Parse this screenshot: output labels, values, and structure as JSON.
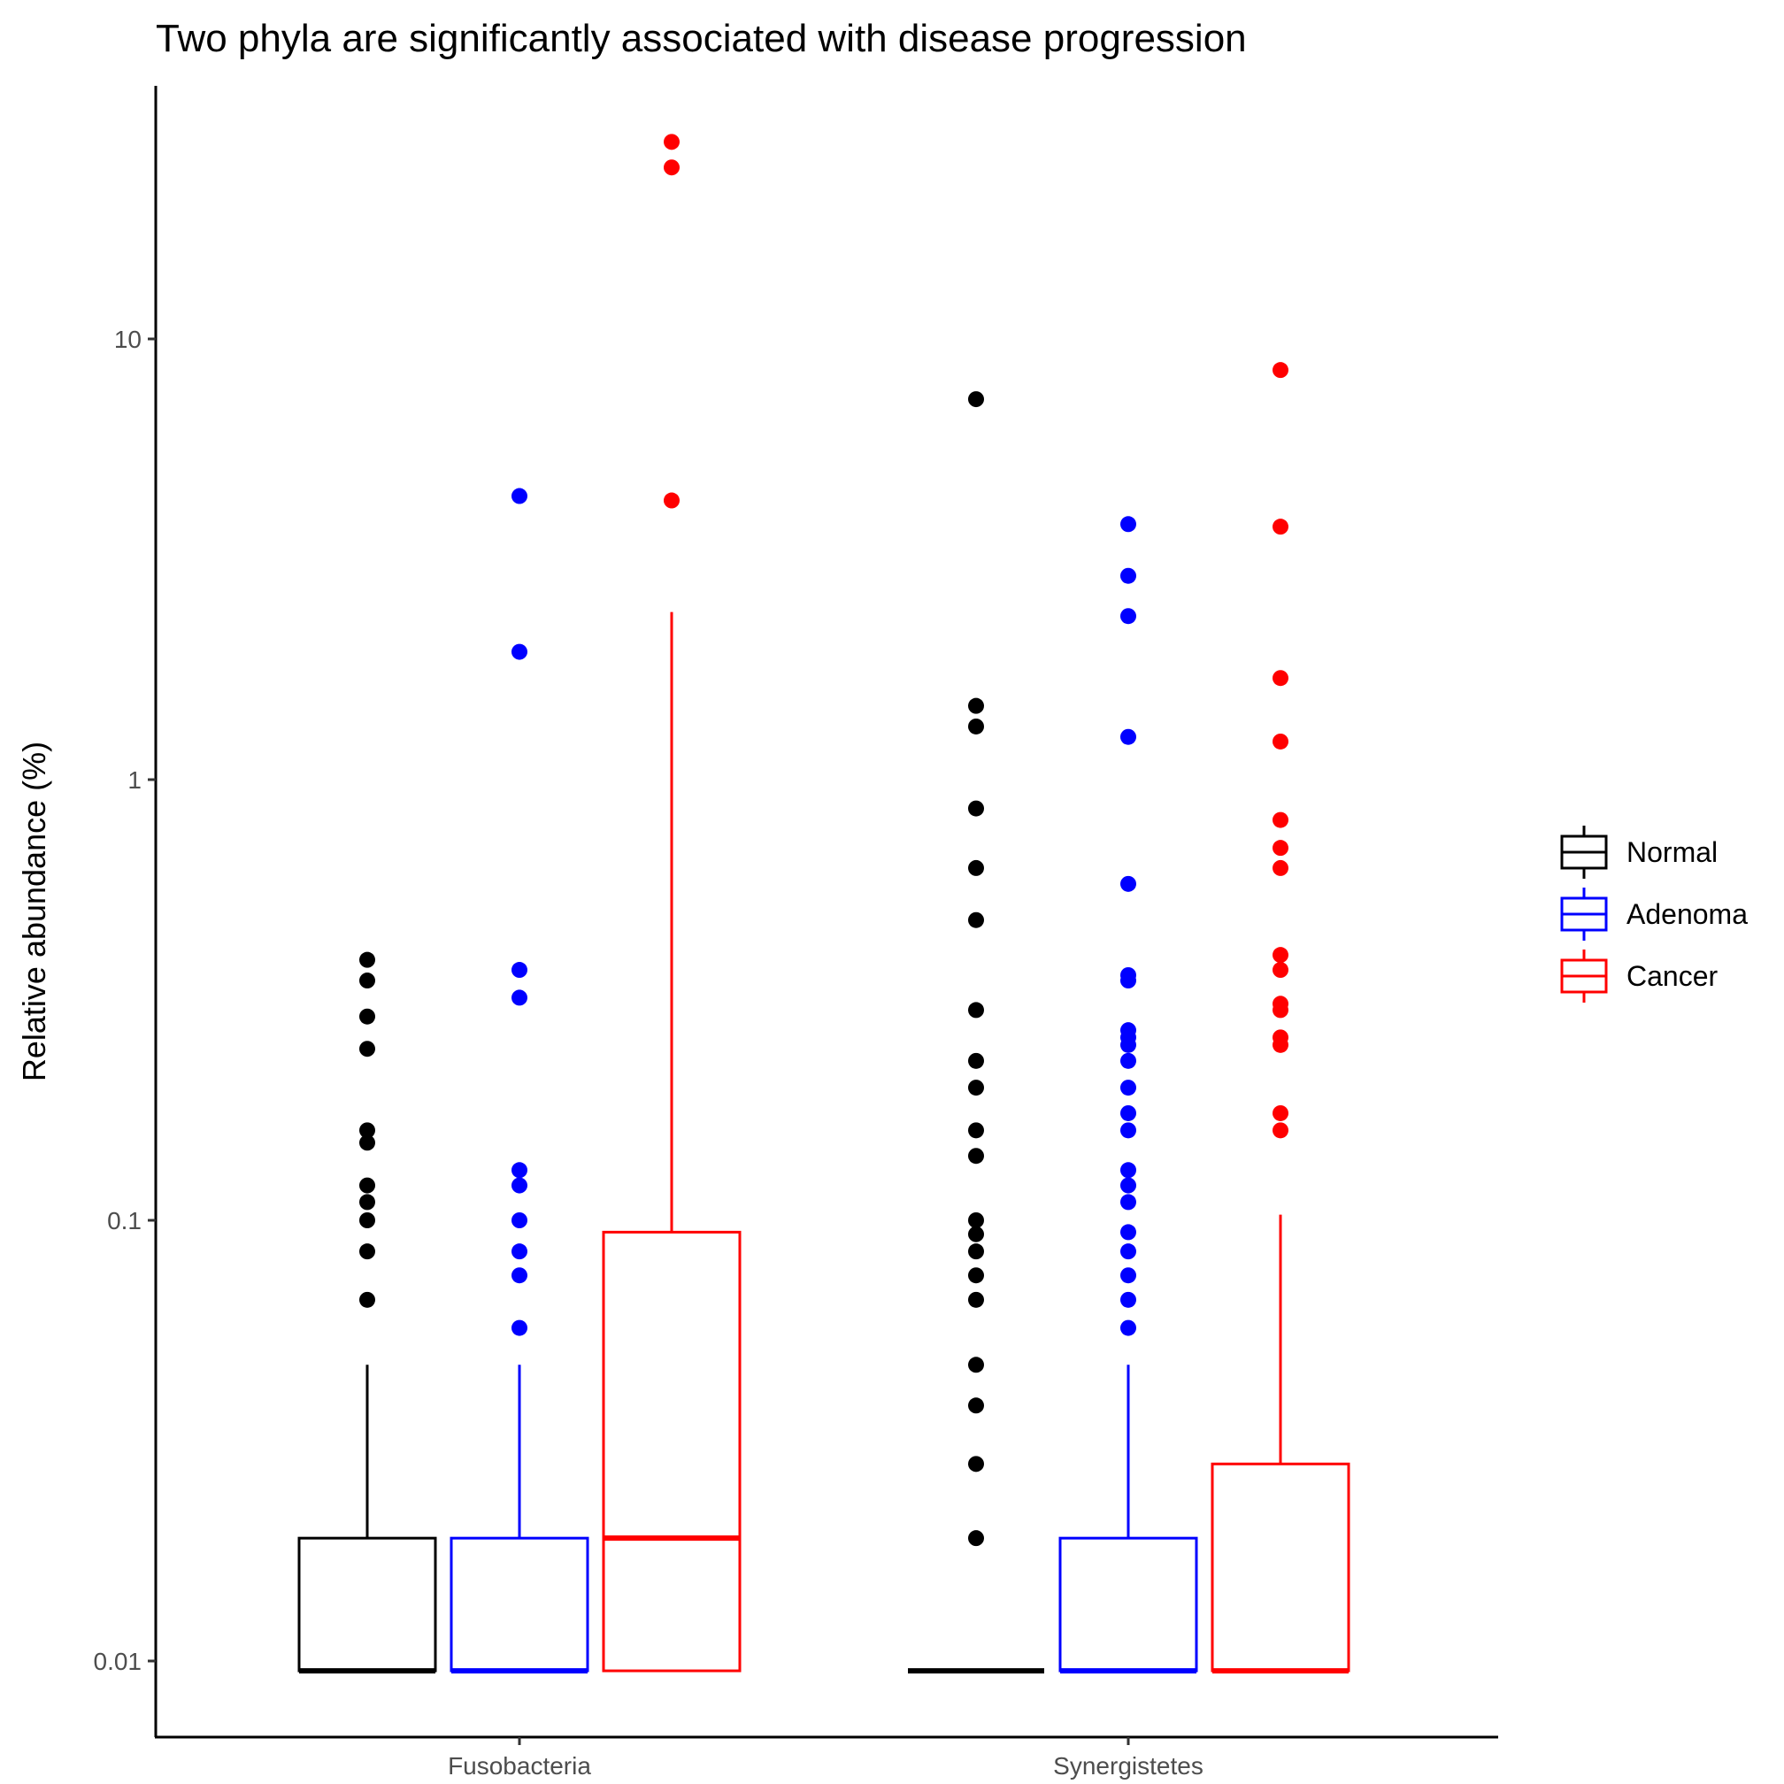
{
  "chart_data": {
    "type": "box",
    "title": "Two phyla are significantly associated with disease progression",
    "xlabel": "",
    "ylabel": "Relative abundance (%)",
    "y_scale": "log10",
    "ylim": [
      0.0055,
      50
    ],
    "y_ticks": [
      0.01,
      0.1,
      1,
      10
    ],
    "y_tick_labels": [
      "0.01",
      "0.1",
      "1",
      "10"
    ],
    "categories": [
      "Fusobacteria",
      "Synergistetes"
    ],
    "grid": false,
    "legend": {
      "position": "right"
    },
    "series": [
      {
        "name": "Normal",
        "color": "#000000",
        "boxes": [
          {
            "min": 0.0095,
            "q1": 0.0095,
            "median": 0.0095,
            "q3": 0.019,
            "max": 0.047,
            "outliers": [
              0.39,
              0.35,
              0.29,
              0.245,
              0.16,
              0.15,
              0.12,
              0.11,
              0.1,
              0.085,
              0.066
            ]
          },
          {
            "min": 0.0095,
            "q1": 0.0095,
            "median": 0.0095,
            "q3": 0.0095,
            "max": 0.0095,
            "outliers": [
              7.3,
              1.47,
              1.32,
              0.86,
              0.63,
              0.48,
              0.3,
              0.23,
              0.2,
              0.16,
              0.14,
              0.1,
              0.093,
              0.085,
              0.075,
              0.066,
              0.047,
              0.038,
              0.028,
              0.019
            ]
          }
        ]
      },
      {
        "name": "Adenoma",
        "color": "#0000ff",
        "boxes": [
          {
            "min": 0.0095,
            "q1": 0.0095,
            "median": 0.0095,
            "q3": 0.019,
            "max": 0.047,
            "outliers": [
              4.4,
              1.95,
              0.37,
              0.32,
              0.13,
              0.12,
              0.1,
              0.085,
              0.075,
              0.057
            ]
          },
          {
            "min": 0.0095,
            "q1": 0.0095,
            "median": 0.0095,
            "q3": 0.019,
            "max": 0.047,
            "outliers": [
              3.8,
              2.9,
              2.35,
              1.25,
              0.58,
              0.36,
              0.35,
              0.27,
              0.26,
              0.25,
              0.23,
              0.2,
              0.175,
              0.16,
              0.13,
              0.12,
              0.11,
              0.094,
              0.085,
              0.075,
              0.066,
              0.057
            ]
          }
        ]
      },
      {
        "name": "Cancer",
        "color": "#ff0000",
        "boxes": [
          {
            "min": 0.0095,
            "q1": 0.0095,
            "median": 0.019,
            "q3": 0.094,
            "max": 2.4,
            "outliers": [
              28,
              24.5,
              4.3
            ]
          },
          {
            "min": 0.0095,
            "q1": 0.0095,
            "median": 0.0095,
            "q3": 0.028,
            "max": 0.103,
            "outliers": [
              8.5,
              3.75,
              1.7,
              1.22,
              0.81,
              0.7,
              0.63,
              0.4,
              0.37,
              0.31,
              0.3,
              0.26,
              0.25,
              0.175,
              0.16
            ]
          }
        ]
      }
    ]
  }
}
